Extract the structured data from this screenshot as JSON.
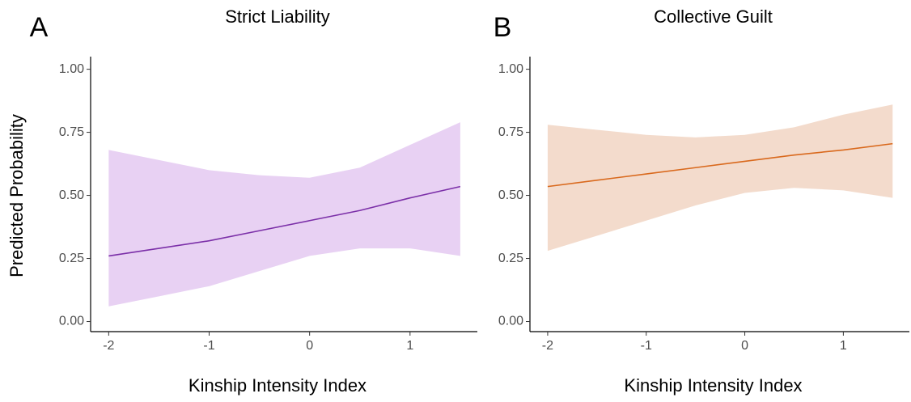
{
  "chart_data": [
    {
      "type": "line",
      "panel_label": "A",
      "title": "Strict Liability",
      "xlabel": "Kinship Intensity Index",
      "ylabel": "Predicted Probability",
      "x": [
        -2,
        -1.5,
        -1,
        -0.5,
        0,
        0.5,
        1,
        1.5
      ],
      "series": [
        {
          "color": "#7b2fa8",
          "band_color": "#e8d1f3",
          "values": [
            0.26,
            0.29,
            0.32,
            0.36,
            0.4,
            0.44,
            0.49,
            0.535
          ],
          "upper": [
            0.68,
            0.64,
            0.6,
            0.58,
            0.57,
            0.61,
            0.7,
            0.79
          ],
          "lower": [
            0.06,
            0.1,
            0.14,
            0.2,
            0.26,
            0.29,
            0.29,
            0.26
          ]
        }
      ],
      "xlim": [
        -2.18,
        1.67
      ],
      "ylim": [
        -0.04,
        1.05
      ],
      "xticks": [
        -2,
        -1,
        0,
        1
      ],
      "yticks": [
        {
          "value": 0,
          "label": "0.00"
        },
        {
          "value": 0.25,
          "label": "0.25"
        },
        {
          "value": 0.5,
          "label": "0.50"
        },
        {
          "value": 0.75,
          "label": "0.75"
        },
        {
          "value": 1,
          "label": "1.00"
        }
      ]
    },
    {
      "type": "line",
      "panel_label": "B",
      "title": "Collective Guilt",
      "xlabel": "Kinship Intensity Index",
      "x": [
        -2,
        -1.5,
        -1,
        -0.5,
        0,
        0.5,
        1,
        1.5
      ],
      "series": [
        {
          "color": "#d9691d",
          "band_color": "#f3dbcc",
          "values": [
            0.535,
            0.56,
            0.585,
            0.61,
            0.635,
            0.66,
            0.68,
            0.705
          ],
          "upper": [
            0.78,
            0.76,
            0.74,
            0.73,
            0.74,
            0.77,
            0.82,
            0.86
          ],
          "lower": [
            0.28,
            0.34,
            0.4,
            0.46,
            0.51,
            0.53,
            0.52,
            0.49
          ]
        }
      ],
      "xlim": [
        -2.18,
        1.67
      ],
      "ylim": [
        -0.04,
        1.05
      ],
      "xticks": [
        -2,
        -1,
        0,
        1
      ],
      "yticks": [
        {
          "value": 0,
          "label": "0.00"
        },
        {
          "value": 0.25,
          "label": "0.25"
        },
        {
          "value": 0.5,
          "label": "0.50"
        },
        {
          "value": 0.75,
          "label": "0.75"
        },
        {
          "value": 1,
          "label": "1.00"
        }
      ]
    }
  ]
}
